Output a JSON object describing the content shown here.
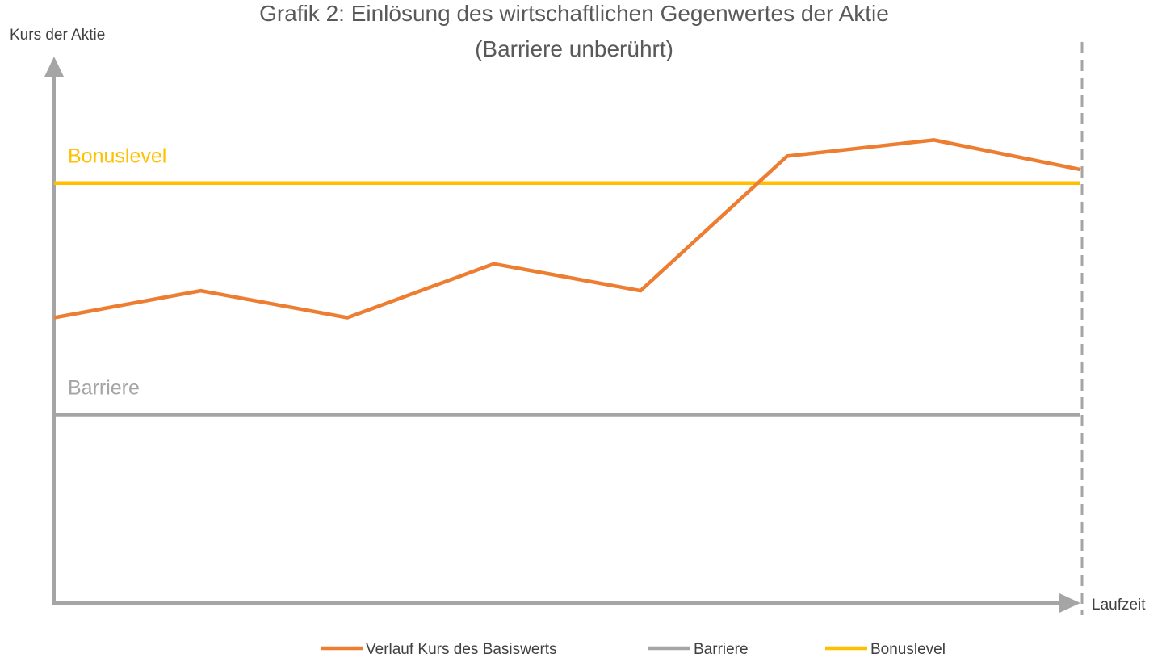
{
  "chart_data": {
    "type": "line",
    "title": "Grafik 2: Einlösung des wirtschaftlichen Gegenwertes der Aktie",
    "subtitle": "(Barriere unberührt)",
    "ylabel": "Kurs der Aktie",
    "xlabel": "Laufzeit",
    "x": [
      0,
      1,
      2,
      3,
      4,
      5,
      6,
      7
    ],
    "ylim": [
      0,
      100
    ],
    "xlim": [
      0,
      7
    ],
    "grid": false,
    "legend_position": "bottom",
    "series": [
      {
        "name": "Verlauf Kurs des Basiswerts",
        "color": "#ED7D31",
        "values": [
          53,
          58,
          53,
          63,
          58,
          83,
          86,
          80.5
        ]
      },
      {
        "name": "Barriere",
        "color": "#A5A5A5",
        "values": [
          35,
          35,
          35,
          35,
          35,
          35,
          35,
          35
        ],
        "label": "Barriere"
      },
      {
        "name": "Bonuslevel",
        "color": "#FFC000",
        "values": [
          78,
          78,
          78,
          78,
          78,
          78,
          78,
          78
        ],
        "label": "Bonuslevel"
      }
    ],
    "end_marker": {
      "style": "dashed",
      "color": "#A5A5A5"
    }
  }
}
